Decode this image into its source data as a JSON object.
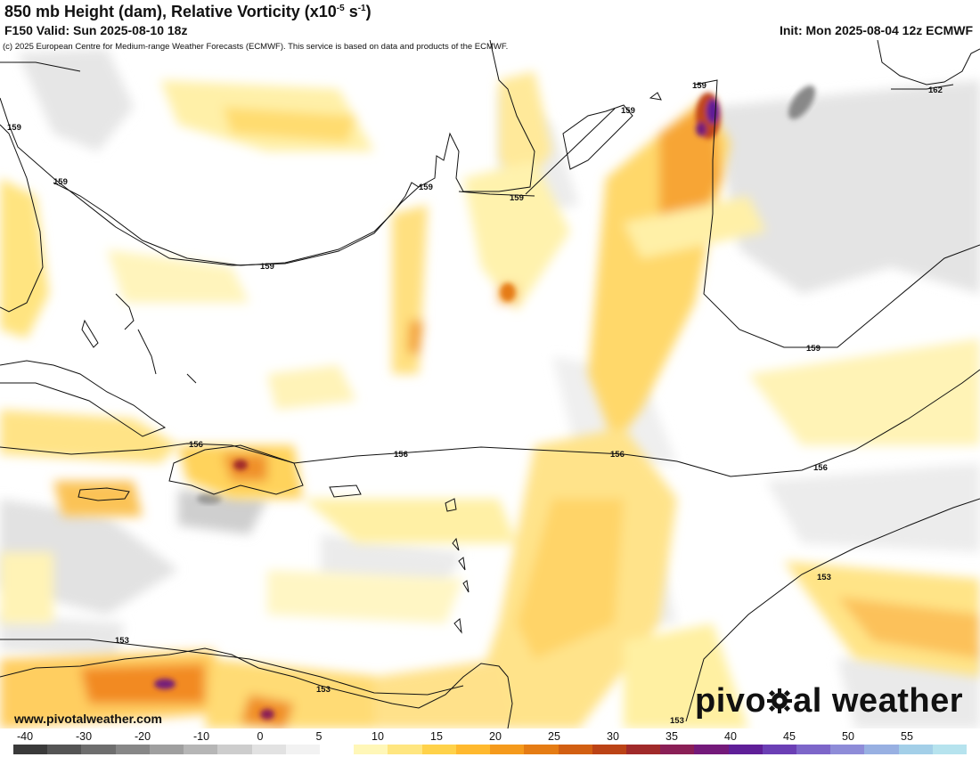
{
  "header": {
    "title": "850 mb Height (dam), Relative Vorticity (x10",
    "title_exp": "-5",
    "title_unit": " s",
    "title_exp2": "-1",
    "title_close": ")",
    "valid": "F150 Valid: Sun 2025-08-10 18z",
    "init": "Init: Mon 2025-08-04 12z ECMWF"
  },
  "copyright": "(c) 2025 European Centre for Medium-range Weather Forecasts (ECMWF). This service is based on data and products of the ECMWF.",
  "website": "www.pivotalweather.com",
  "brand": {
    "left": "pivo",
    "right": "al weather"
  },
  "contour_labels": [
    "159",
    "159",
    "159",
    "159",
    "159",
    "159",
    "162",
    "159",
    "156",
    "156",
    "156",
    "156",
    "153",
    "153",
    "153",
    "153"
  ],
  "colorbar": {
    "ticks": [
      "-40",
      "-30",
      "-20",
      "-10",
      "0",
      "5",
      "10",
      "15",
      "20",
      "25",
      "30",
      "35",
      "40",
      "45",
      "50",
      "55"
    ],
    "colors": [
      "#3a3a3a",
      "#555555",
      "#6e6e6e",
      "#878787",
      "#9f9f9f",
      "#b6b6b6",
      "#cdcdcd",
      "#e2e2e2",
      "#f2f2f2",
      "#ffffff",
      "#fff7b8",
      "#ffe680",
      "#ffd24a",
      "#ffb92e",
      "#f59a1c",
      "#e57c14",
      "#d25f12",
      "#bb4316",
      "#a02a2a",
      "#8a1f56",
      "#741a7a",
      "#5f1f98",
      "#6b3fb5",
      "#7d66c9",
      "#8e8cd8",
      "#98b0e2",
      "#a3cfe8",
      "#b6e3ee"
    ]
  }
}
